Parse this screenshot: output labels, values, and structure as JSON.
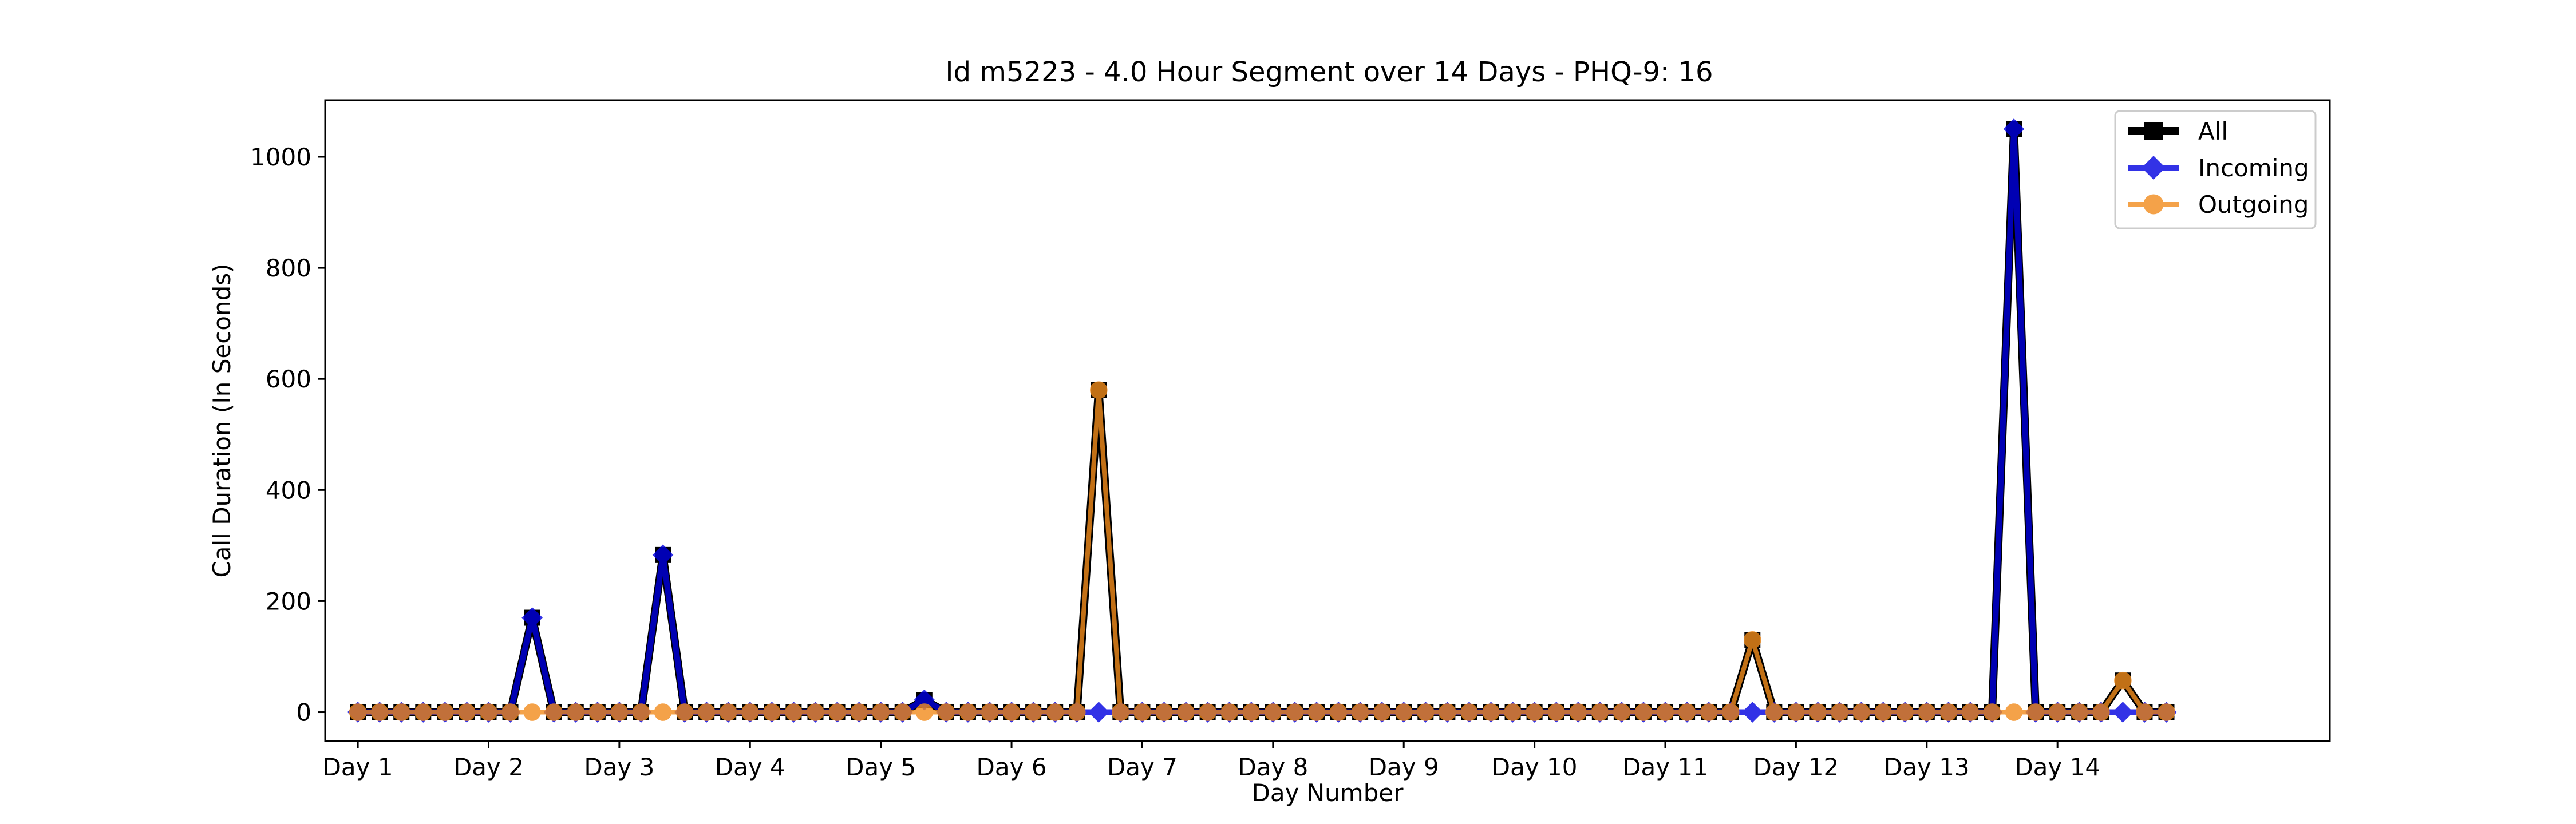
{
  "chart_data": {
    "type": "line",
    "title": "Id m5223 - 4.0 Hour Segment over 14 Days - PHQ-9: 16",
    "xlabel": "Day Number",
    "ylabel": "Call Duration (In Seconds)",
    "xlim": [
      -1.5,
      90.5
    ],
    "ylim": [
      -52,
      1102
    ],
    "yticks": [
      0,
      200,
      400,
      600,
      800,
      1000
    ],
    "xticks": [
      {
        "pos": 0,
        "label": "Day 1"
      },
      {
        "pos": 6,
        "label": "Day 2"
      },
      {
        "pos": 12,
        "label": "Day 3"
      },
      {
        "pos": 18,
        "label": "Day 4"
      },
      {
        "pos": 24,
        "label": "Day 5"
      },
      {
        "pos": 30,
        "label": "Day 6"
      },
      {
        "pos": 36,
        "label": "Day 7"
      },
      {
        "pos": 42,
        "label": "Day 8"
      },
      {
        "pos": 48,
        "label": "Day 9"
      },
      {
        "pos": 54,
        "label": "Day 10"
      },
      {
        "pos": 60,
        "label": "Day 11"
      },
      {
        "pos": 66,
        "label": "Day 12"
      },
      {
        "pos": 72,
        "label": "Day 13"
      },
      {
        "pos": 78,
        "label": "Day 14"
      }
    ],
    "n_points": 84,
    "legend": "top-right",
    "series": [
      {
        "name": "All",
        "color": "#000000",
        "marker": "square",
        "points": [
          [
            8,
            170
          ],
          [
            14,
            283
          ],
          [
            26,
            22
          ],
          [
            34,
            580
          ],
          [
            64,
            130
          ],
          [
            76,
            1050
          ],
          [
            81,
            57
          ]
        ]
      },
      {
        "name": "Incoming",
        "color": "#0000e0",
        "marker": "diamond",
        "points": [
          [
            8,
            170
          ],
          [
            14,
            283
          ],
          [
            26,
            22
          ],
          [
            76,
            1050
          ]
        ]
      },
      {
        "name": "Outgoing",
        "color": "#f28c1c",
        "marker": "circle",
        "points": [
          [
            34,
            580
          ],
          [
            64,
            130
          ],
          [
            81,
            57
          ]
        ]
      }
    ]
  }
}
